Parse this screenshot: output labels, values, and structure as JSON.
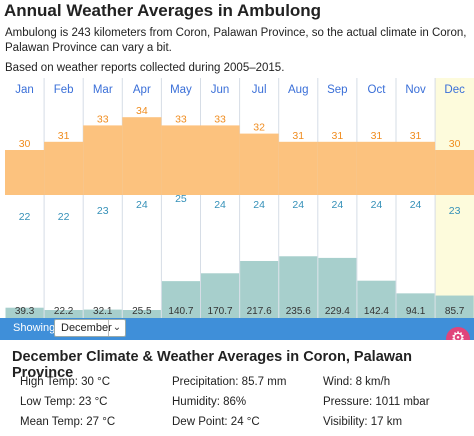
{
  "page": {
    "title": "Annual Weather Averages in Ambulong",
    "description": "Ambulong is 243 kilometers from Coron, Palawan Province, so the actual climate in Coron, Palawan Province can vary a bit.",
    "based_on": "Based on weather reports collected during 2005–2015."
  },
  "chart_data": {
    "type": "bar",
    "categories": [
      "Jan",
      "Feb",
      "Mar",
      "Apr",
      "May",
      "Jun",
      "Jul",
      "Aug",
      "Sep",
      "Oct",
      "Nov",
      "Dec"
    ],
    "series": [
      {
        "name": "High Temp",
        "values": [
          30,
          31,
          33,
          34,
          33,
          33,
          32,
          31,
          31,
          31,
          31,
          30
        ]
      },
      {
        "name": "Low Temp",
        "values": [
          22,
          22,
          23,
          24,
          25,
          24,
          24,
          24,
          24,
          24,
          24,
          23
        ]
      },
      {
        "name": "Precipitation",
        "values": [
          39.3,
          22.2,
          32.1,
          25.5,
          140.7,
          170.7,
          217.6,
          235.6,
          229.4,
          142.4,
          94.1,
          85.7
        ]
      }
    ],
    "selected_month_index": 11,
    "colors": {
      "temp_band": "#fcc27e",
      "precip": "#a7cfcc",
      "selected_col": "#fdfbdc",
      "month_label": "#3a6fd8",
      "high_label": "#f08c1e",
      "low_label": "#3490b8"
    }
  },
  "controls": {
    "showing_label": "Showing:",
    "selected_month": "December",
    "dropdown_icon": "chevron-down-icon",
    "settings_icon": "gear-icon"
  },
  "details": {
    "title": "December Climate & Weather Averages in Coron, Palawan Province",
    "high_temp": "High Temp: 30 °C",
    "low_temp": "Low Temp: 23 °C",
    "mean_temp": "Mean Temp: 27 °C",
    "precipitation": "Precipitation: 85.7 mm",
    "humidity": "Humidity: 86%",
    "dew_point": "Dew Point: 24 °C",
    "wind": "Wind: 8 km/h",
    "pressure": "Pressure: 1011 mbar",
    "visibility": "Visibility: 17 km"
  }
}
